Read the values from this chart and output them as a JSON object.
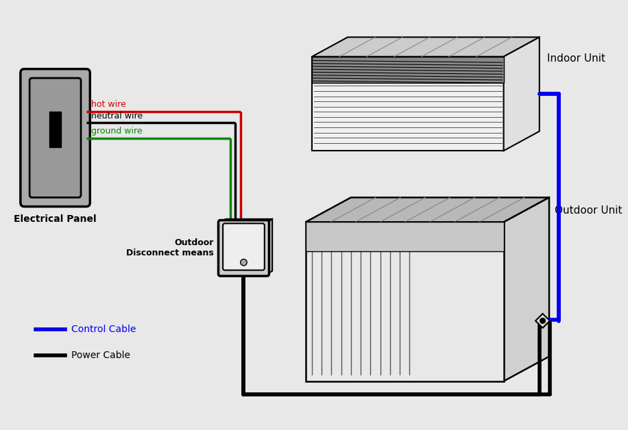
{
  "background_color": "#e8e8e8",
  "labels": {
    "electrical_panel": "Electrical Panel",
    "indoor_unit": "Indoor Unit",
    "outdoor_unit": "Outdoor Unit",
    "outdoor_disconnect": "Outdoor\nDisconnect means",
    "hot_wire": "hot wire",
    "neutral_wire": "neutral wire",
    "ground_wire": "ground wire",
    "control_cable": "Control Cable",
    "power_cable": "Power Cable"
  },
  "colors": {
    "hot_wire": "#cc0000",
    "neutral_wire": "#000000",
    "ground_wire": "#008800",
    "control_cable": "#0000ee",
    "power_cable": "#000000",
    "panel_outer": "#aaaaaa",
    "panel_inner": "#999999",
    "unit_front_light": "#e8e8e8",
    "unit_top": "#bbbbbb",
    "unit_side": "#999999",
    "unit_slat": "#777777",
    "disconnect_outer": "#cccccc",
    "disconnect_inner": "#eeeeee",
    "background": "#e8e8e8",
    "white": "#ffffff",
    "black": "#000000"
  },
  "wire_lw": 2.0,
  "cable_lw": 3.0
}
